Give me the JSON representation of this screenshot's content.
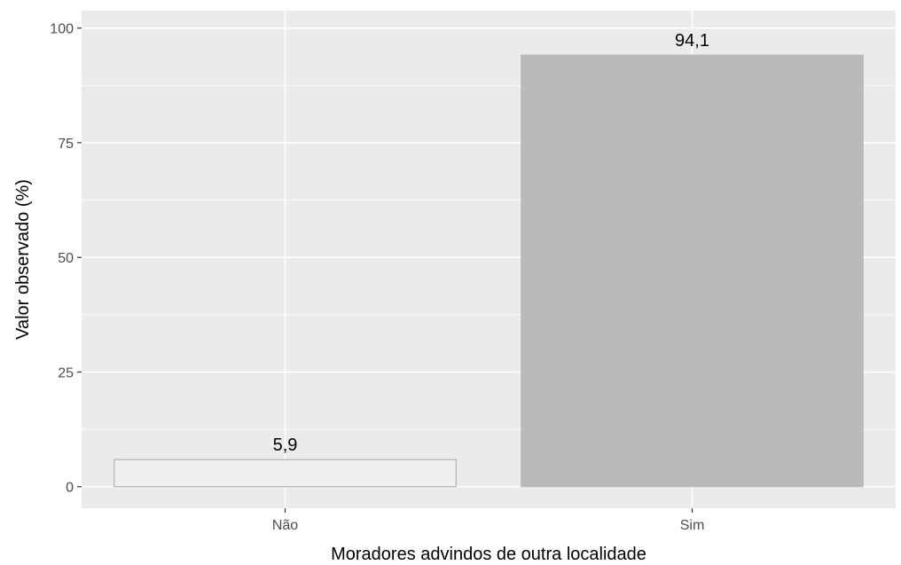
{
  "chart_data": {
    "type": "bar",
    "categories": [
      "Não",
      "Sim"
    ],
    "values": [
      5.9,
      94.1
    ],
    "value_labels": [
      "5,9",
      "94,1"
    ],
    "bar_colors": [
      "#efefef",
      "#bababa"
    ],
    "bar_outline_colors": [
      "#b3b3b3",
      "#bababa"
    ],
    "title": "",
    "xlabel": "Moradores advindos de outra localidade",
    "ylabel": "Valor observado (%)",
    "ylim": [
      -4.7,
      103.8
    ],
    "yticks": [
      0,
      25,
      50,
      75,
      100
    ],
    "ytick_labels": [
      "0",
      "25",
      "50",
      "75",
      "100"
    ],
    "grid": true,
    "legend": "none",
    "panel_background": "#ebebeb",
    "grid_color": "#ffffff"
  }
}
